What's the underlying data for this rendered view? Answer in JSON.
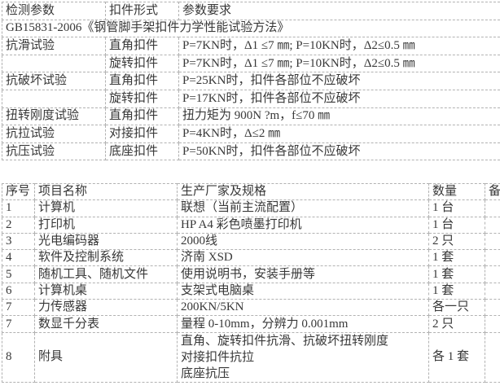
{
  "page": {
    "background_color": "#ffffff",
    "text_color": "#383838",
    "border_color": "#b2b2b2"
  },
  "test_table": {
    "headers": {
      "param": "检测参数",
      "type": "扣件形式",
      "requirement": "参数要求"
    },
    "standard_reference": "GB15831-2006《钢管脚手架扣件力学性能试验方法》",
    "rows": [
      {
        "param": "抗滑试验",
        "type": "直角扣件",
        "req": "P=7KN时，Δ1 ≤7 ㎜; P=10KN时，Δ2≤0.5 ㎜"
      },
      {
        "param": "",
        "type": "旋转扣件",
        "req": "P=7KN时，Δ1 ≤7 ㎜; P=10KN时，Δ2≤0.5 ㎜"
      },
      {
        "param": "抗破坏试验",
        "type": "直角扣件",
        "req": "P=25KN时，扣件各部位不应破坏"
      },
      {
        "param": "",
        "type": "旋转扣件",
        "req": "P=17KN时，扣件各部位不应破坏"
      },
      {
        "param": "扭转刚度试验",
        "type": "直角扣件",
        "req": "扭力矩为 900N ?m，f≤70 ㎜"
      },
      {
        "param": "抗拉试验",
        "type": "对接扣件",
        "req": "P=4KN时，Δ≤2 ㎜"
      },
      {
        "param": "抗压试验",
        "type": "底座扣件",
        "req": "P=50KN时，扣件各部位不应破坏"
      }
    ]
  },
  "equipment_table": {
    "headers": {
      "no": "序号",
      "name": "项目名称",
      "spec": "生产厂家及规格",
      "qty": "数量",
      "note": "备注"
    },
    "rows": [
      {
        "no": "1",
        "name": "计算机",
        "spec": "联想（当前主流配置）",
        "qty": "1 台",
        "note": ""
      },
      {
        "no": "2",
        "name": "打印机",
        "spec": "HP A4 彩色喷墨打印机",
        "qty": "1 台",
        "note": ""
      },
      {
        "no": "3",
        "name": "光电编码器",
        "spec": "2000线",
        "qty": "2 只",
        "note": ""
      },
      {
        "no": "4",
        "name": "软件及控制系统",
        "spec": "济南 XSD",
        "qty": "1 套",
        "note": ""
      },
      {
        "no": "5",
        "name": "随机工具、随机文件",
        "spec": "使用说明书，安装手册等",
        "qty": "1 套",
        "note": ""
      },
      {
        "no": "6",
        "name": "计算机桌",
        "spec": "支架式电脑桌",
        "qty": "1 套",
        "note": ""
      },
      {
        "no": "7",
        "name": "力传感器",
        "spec": "200KN/5KN",
        "qty": "各一只",
        "note": ""
      },
      {
        "no": "7",
        "name": "数显千分表",
        "spec": "量程 0-10mm，分辨力 0.001mm",
        "qty": "2 只",
        "note": ""
      }
    ],
    "last_row": {
      "no": "8",
      "name": "附具",
      "spec_lines": [
        "直角、旋转扣件抗滑、抗破坏扭转刚度",
        "对接扣件抗拉",
        "底座抗压"
      ],
      "qty": "各 1 套",
      "note": ""
    }
  }
}
